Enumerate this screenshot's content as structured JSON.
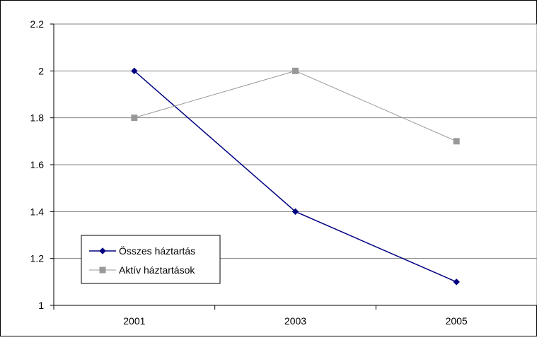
{
  "chart_data": {
    "type": "line",
    "title": "",
    "xlabel": "",
    "ylabel": "",
    "categories": [
      "2001",
      "2003",
      "2005"
    ],
    "ylim": [
      1,
      2.2
    ],
    "yticks": [
      "1",
      "1.2",
      "1.4",
      "1.6",
      "1.8",
      "2",
      "2.2"
    ],
    "ytick_values": [
      1,
      1.2,
      1.4,
      1.6,
      1.8,
      2,
      2.2
    ],
    "grid": true,
    "legend_position": "bottom-left",
    "series": [
      {
        "name": "Összes háztartás",
        "values": [
          2.0,
          1.4,
          1.1
        ],
        "color": "#000080",
        "marker": "diamond"
      },
      {
        "name": "Aktív háztartások",
        "values": [
          1.8,
          2.0,
          1.7
        ],
        "color": "#999999",
        "marker": "square"
      }
    ]
  }
}
